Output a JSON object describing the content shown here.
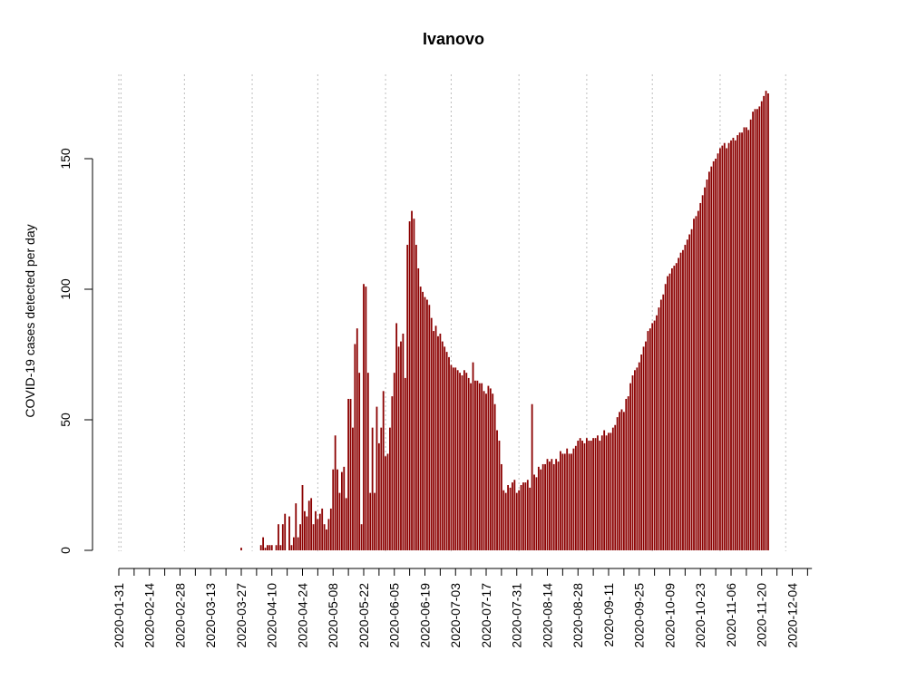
{
  "chart_data": {
    "type": "bar",
    "title": "Ivanovo",
    "xlabel": "",
    "ylabel": "COVID-19 cases detected per day",
    "ylim": [
      0,
      176
    ],
    "yticks": [
      0,
      50,
      100,
      150
    ],
    "x_start": "2020-01-31",
    "x_end": "2020-12-13",
    "xtick_labels": [
      "2020-01-31",
      "2020-02-14",
      "2020-02-28",
      "2020-03-13",
      "2020-03-27",
      "2020-04-10",
      "2020-04-24",
      "2020-05-08",
      "2020-05-22",
      "2020-06-05",
      "2020-06-19",
      "2020-07-03",
      "2020-07-17",
      "2020-07-31",
      "2020-08-14",
      "2020-08-28",
      "2020-09-11",
      "2020-09-25",
      "2020-10-09",
      "2020-10-23",
      "2020-11-06",
      "2020-11-20",
      "2020-12-04"
    ],
    "monthly_gridlines": [
      "2020-02-01",
      "2020-03-01",
      "2020-04-01",
      "2020-05-01",
      "2020-06-01",
      "2020-07-01",
      "2020-08-01",
      "2020-09-01",
      "2020-10-01",
      "2020-11-01",
      "2020-12-01"
    ],
    "bar_color": "#8b0000",
    "grid_color": "#bebebe",
    "series": [
      {
        "values": [
          0,
          0,
          0,
          0,
          0,
          0,
          0,
          0,
          0,
          0,
          0,
          0,
          0,
          0,
          0,
          0,
          0,
          0,
          0,
          0,
          0,
          0,
          0,
          0,
          0,
          0,
          0,
          0,
          0,
          0,
          0,
          0,
          0,
          0,
          0,
          0,
          0,
          0,
          0,
          0,
          0,
          0,
          0,
          0,
          0,
          0,
          0,
          0,
          0,
          0,
          0,
          0,
          0,
          0,
          0,
          0,
          1,
          0,
          0,
          0,
          0,
          0,
          0,
          0,
          0,
          2,
          5,
          1,
          2,
          2,
          2,
          0,
          2,
          10,
          2,
          10,
          14,
          0,
          13,
          2,
          5,
          18,
          5,
          10,
          25,
          15,
          13,
          19,
          20,
          10,
          15,
          12,
          14,
          16,
          10,
          8,
          12,
          16,
          31,
          44,
          31,
          22,
          30,
          32,
          20,
          58,
          58,
          47,
          79,
          85,
          68,
          10,
          102,
          101,
          68,
          22,
          47,
          22,
          55,
          41,
          47,
          61,
          36,
          37,
          47,
          59,
          68,
          87,
          78,
          80,
          83,
          66,
          117,
          126,
          130,
          127,
          117,
          108,
          101,
          99,
          97,
          96,
          94,
          89,
          84,
          86,
          82,
          83,
          80,
          78,
          76,
          74,
          71,
          70,
          70,
          69,
          68,
          67,
          69,
          68,
          66,
          64,
          72,
          65,
          65,
          64,
          64,
          61,
          60,
          63,
          62,
          60,
          56,
          46,
          42,
          33,
          23,
          22,
          25,
          24,
          26,
          27,
          22,
          23,
          25,
          26,
          26,
          27,
          24,
          56,
          29,
          28,
          32,
          31,
          33,
          33,
          35,
          34,
          35,
          33,
          35,
          34,
          38,
          37,
          37,
          39,
          37,
          37,
          39,
          40,
          42,
          43,
          42,
          41,
          43,
          42,
          42,
          43,
          43,
          44,
          42,
          44,
          46,
          44,
          45,
          45,
          47,
          48,
          51,
          53,
          54,
          53,
          58,
          59,
          64,
          67,
          69,
          70,
          72,
          75,
          78,
          80,
          84,
          85,
          87,
          88,
          90,
          93,
          96,
          98,
          102,
          105,
          106,
          108,
          109,
          110,
          112,
          114,
          115,
          117,
          119,
          121,
          123,
          127,
          128,
          130,
          133,
          136,
          139,
          142,
          145,
          147,
          149,
          150,
          152,
          154,
          155,
          156,
          154,
          156,
          157,
          158,
          157,
          159,
          160,
          160,
          162,
          162,
          161,
          165,
          168,
          169,
          169,
          170,
          172,
          174,
          176,
          175
        ]
      }
    ]
  }
}
